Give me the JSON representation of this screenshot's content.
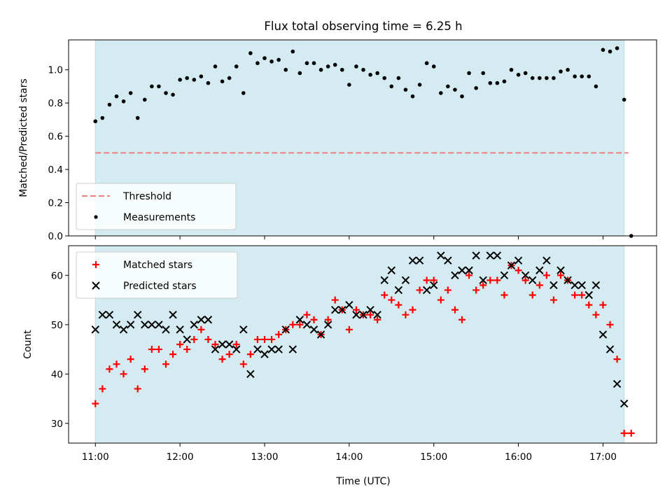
{
  "chart_data": [
    {
      "type": "scatter",
      "title": "Flux total observing time = 6.25 h",
      "xlabel": "",
      "ylabel": "Matched/Predicted stars",
      "x_range": [
        "10:41",
        "17:38"
      ],
      "ylim": [
        0.0,
        1.18
      ],
      "y_ticks": [
        0.0,
        0.2,
        0.4,
        0.6,
        0.8,
        1.0
      ],
      "y_tick_labels": [
        "0.0",
        "0.2",
        "0.4",
        "0.6",
        "0.8",
        "1.0"
      ],
      "x_ticks": [
        "11:00",
        "12:00",
        "13:00",
        "14:00",
        "15:00",
        "16:00",
        "17:00"
      ],
      "x_tick_labels": [
        "",
        "",
        "",
        "",
        "",
        "",
        ""
      ],
      "shaded_span": {
        "from": "11:00",
        "to": "17:15",
        "color": "#d4ebf1"
      },
      "legend": {
        "placement": "lower-left",
        "entries": [
          "Threshold",
          "Measurements"
        ]
      },
      "series": [
        {
          "name": "Threshold",
          "kind": "dashed-line",
          "color": "#ef7f7f",
          "x": [
            "11:00",
            "17:18"
          ],
          "y": [
            0.5,
            0.5
          ]
        },
        {
          "name": "Measurements",
          "kind": "dot",
          "color": "#000000",
          "x": [
            "11:00",
            "11:05",
            "11:10",
            "11:15",
            "11:20",
            "11:25",
            "11:30",
            "11:35",
            "11:40",
            "11:45",
            "11:50",
            "11:55",
            "12:00",
            "12:05",
            "12:10",
            "12:15",
            "12:20",
            "12:25",
            "12:30",
            "12:35",
            "12:40",
            "12:45",
            "12:50",
            "12:55",
            "13:00",
            "13:05",
            "13:10",
            "13:15",
            "13:20",
            "13:25",
            "13:30",
            "13:35",
            "13:40",
            "13:45",
            "13:50",
            "13:55",
            "14:00",
            "14:05",
            "14:10",
            "14:15",
            "14:20",
            "14:25",
            "14:30",
            "14:35",
            "14:40",
            "14:45",
            "14:50",
            "14:55",
            "15:00",
            "15:05",
            "15:10",
            "15:15",
            "15:20",
            "15:25",
            "15:30",
            "15:35",
            "15:40",
            "15:45",
            "15:50",
            "15:55",
            "16:00",
            "16:05",
            "16:10",
            "16:15",
            "16:20",
            "16:25",
            "16:30",
            "16:35",
            "16:40",
            "16:45",
            "16:50",
            "16:55",
            "17:00",
            "17:05",
            "17:10",
            "17:15",
            "17:20"
          ],
          "y": [
            0.69,
            0.71,
            0.79,
            0.84,
            0.81,
            0.86,
            0.71,
            0.82,
            0.9,
            0.9,
            0.86,
            0.85,
            0.94,
            0.95,
            0.94,
            0.96,
            0.92,
            1.02,
            0.93,
            0.95,
            1.02,
            0.86,
            1.1,
            1.04,
            1.07,
            1.05,
            1.06,
            1.0,
            1.11,
            0.98,
            1.04,
            1.04,
            1.0,
            1.02,
            1.03,
            1.0,
            0.91,
            1.02,
            1.0,
            0.97,
            0.98,
            0.95,
            0.9,
            0.95,
            0.88,
            0.84,
            0.91,
            1.04,
            1.02,
            0.86,
            0.9,
            0.88,
            0.84,
            0.98,
            0.89,
            0.98,
            0.92,
            0.92,
            0.93,
            1.0,
            0.97,
            0.98,
            0.95,
            0.95,
            0.95,
            0.95,
            0.99,
            1.0,
            0.96,
            0.96,
            0.96,
            0.9,
            1.12,
            1.11,
            1.13,
            0.82,
            0.0
          ]
        }
      ]
    },
    {
      "type": "scatter",
      "title": "",
      "xlabel": "Time (UTC)",
      "ylabel": "Count",
      "x_range": [
        "10:41",
        "17:38"
      ],
      "ylim": [
        26,
        66
      ],
      "y_ticks": [
        30,
        40,
        50,
        60
      ],
      "y_tick_labels": [
        "30",
        "40",
        "50",
        "60"
      ],
      "x_ticks": [
        "11:00",
        "12:00",
        "13:00",
        "14:00",
        "15:00",
        "16:00",
        "17:00"
      ],
      "x_tick_labels": [
        "11:00",
        "12:00",
        "13:00",
        "14:00",
        "15:00",
        "16:00",
        "17:00"
      ],
      "shaded_span": {
        "from": "11:00",
        "to": "17:15",
        "color": "#d4ebf1"
      },
      "legend": {
        "placement": "upper-left",
        "entries": [
          "Matched stars",
          "Predicted stars"
        ]
      },
      "series": [
        {
          "name": "Matched stars",
          "kind": "plus",
          "color": "#ff0000",
          "x": [
            "11:00",
            "11:05",
            "11:10",
            "11:15",
            "11:20",
            "11:25",
            "11:30",
            "11:35",
            "11:40",
            "11:45",
            "11:50",
            "11:55",
            "12:00",
            "12:05",
            "12:10",
            "12:15",
            "12:20",
            "12:25",
            "12:30",
            "12:35",
            "12:40",
            "12:45",
            "12:50",
            "12:55",
            "13:00",
            "13:05",
            "13:10",
            "13:15",
            "13:20",
            "13:25",
            "13:30",
            "13:35",
            "13:40",
            "13:45",
            "13:50",
            "13:55",
            "14:00",
            "14:05",
            "14:10",
            "14:15",
            "14:20",
            "14:25",
            "14:30",
            "14:35",
            "14:40",
            "14:45",
            "14:50",
            "14:55",
            "15:00",
            "15:05",
            "15:10",
            "15:15",
            "15:20",
            "15:25",
            "15:30",
            "15:35",
            "15:40",
            "15:45",
            "15:50",
            "15:55",
            "16:00",
            "16:05",
            "16:10",
            "16:15",
            "16:20",
            "16:25",
            "16:30",
            "16:35",
            "16:40",
            "16:45",
            "16:50",
            "16:55",
            "17:00",
            "17:05",
            "17:10",
            "17:15",
            "17:20"
          ],
          "y": [
            34,
            37,
            41,
            42,
            40,
            43,
            37,
            41,
            45,
            45,
            42,
            44,
            46,
            45,
            47,
            49,
            47,
            46,
            43,
            44,
            46,
            42,
            44,
            47,
            47,
            47,
            48,
            49,
            50,
            50,
            52,
            51,
            48,
            51,
            55,
            53,
            49,
            53,
            52,
            52,
            51,
            56,
            55,
            54,
            52,
            53,
            57,
            59,
            59,
            55,
            57,
            53,
            51,
            60,
            57,
            58,
            59,
            59,
            56,
            62,
            61,
            59,
            56,
            58,
            60,
            55,
            60,
            59,
            56,
            56,
            54,
            52,
            54,
            50,
            43,
            28,
            28
          ]
        },
        {
          "name": "Predicted stars",
          "kind": "x",
          "color": "#000000",
          "x": [
            "11:00",
            "11:05",
            "11:10",
            "11:15",
            "11:20",
            "11:25",
            "11:30",
            "11:35",
            "11:40",
            "11:45",
            "11:50",
            "11:55",
            "12:00",
            "12:05",
            "12:10",
            "12:15",
            "12:20",
            "12:25",
            "12:30",
            "12:35",
            "12:40",
            "12:45",
            "12:50",
            "12:55",
            "13:00",
            "13:05",
            "13:10",
            "13:15",
            "13:20",
            "13:25",
            "13:30",
            "13:35",
            "13:40",
            "13:45",
            "13:50",
            "13:55",
            "14:00",
            "14:05",
            "14:10",
            "14:15",
            "14:20",
            "14:25",
            "14:30",
            "14:35",
            "14:40",
            "14:45",
            "14:50",
            "14:55",
            "15:00",
            "15:05",
            "15:10",
            "15:15",
            "15:20",
            "15:25",
            "15:30",
            "15:35",
            "15:40",
            "15:45",
            "15:50",
            "15:55",
            "16:00",
            "16:05",
            "16:10",
            "16:15",
            "16:20",
            "16:25",
            "16:30",
            "16:35",
            "16:40",
            "16:45",
            "16:50",
            "16:55",
            "17:00",
            "17:05",
            "17:10",
            "17:15"
          ],
          "y": [
            49,
            52,
            52,
            50,
            49,
            50,
            52,
            50,
            50,
            50,
            49,
            52,
            49,
            47,
            50,
            51,
            51,
            45,
            46,
            46,
            45,
            49,
            40,
            45,
            44,
            45,
            45,
            49,
            45,
            51,
            50,
            49,
            48,
            50,
            53,
            53,
            54,
            52,
            52,
            53,
            52,
            59,
            61,
            57,
            59,
            63,
            63,
            57,
            58,
            64,
            63,
            60,
            61,
            61,
            64,
            59,
            64,
            64,
            60,
            62,
            63,
            60,
            59,
            61,
            63,
            58,
            61,
            59,
            58,
            58,
            56,
            58,
            48,
            45,
            38,
            34
          ]
        }
      ]
    }
  ]
}
